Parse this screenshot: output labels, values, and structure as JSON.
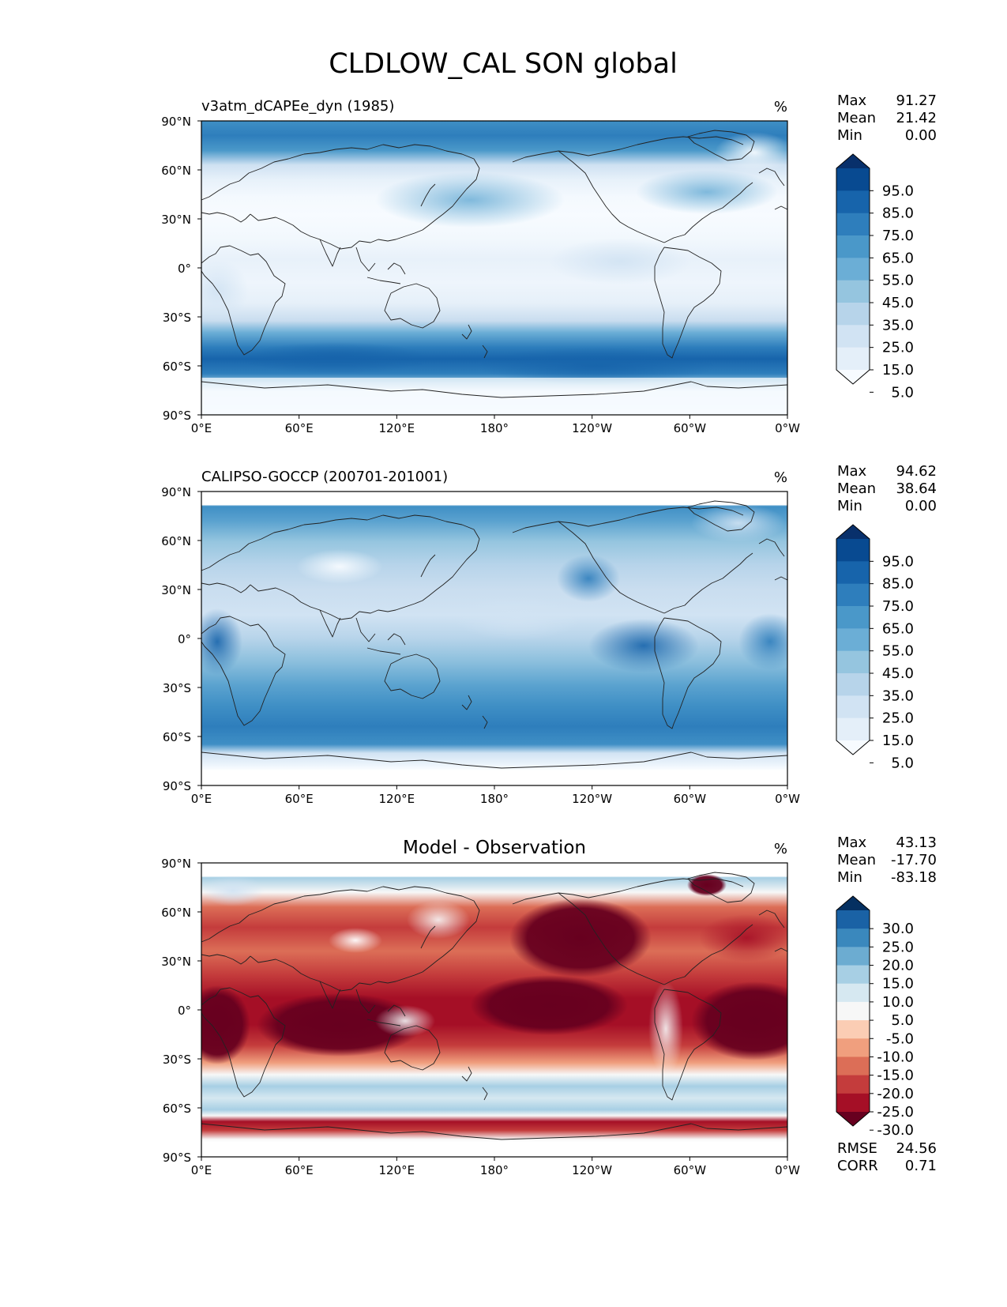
{
  "figure": {
    "title": "CLDLOW_CAL SON global",
    "lat_ticks": [
      "90°N",
      "60°N",
      "30°N",
      "0°",
      "30°S",
      "60°S",
      "90°S"
    ],
    "lon_ticks": [
      "0°E",
      "60°E",
      "120°E",
      "180°",
      "120°W",
      "60°W",
      "0°W"
    ]
  },
  "chart_data": [
    {
      "type": "heatmap",
      "panel": "test",
      "title_left": "v3atm_dCAPEe_dyn (1985)",
      "units": "%",
      "stats": [
        {
          "label": "Max",
          "value": "91.27"
        },
        {
          "label": "Mean",
          "value": "21.42"
        },
        {
          "label": "Min",
          "value": "0.00"
        }
      ],
      "colorbar": {
        "tick_labels": [
          "95.0",
          "85.0",
          "75.0",
          "65.0",
          "55.0",
          "45.0",
          "35.0",
          "25.0",
          "15.0",
          "5.0"
        ],
        "colors": [
          "#f7fbff",
          "#e4eff9",
          "#d1e3f3",
          "#b7d4ea",
          "#95c5df",
          "#6baed6",
          "#4a98c9",
          "#2e7ebc",
          "#1764ab",
          "#084a91",
          "#08306b"
        ]
      },
      "xlim": [
        0,
        360
      ],
      "ylim": [
        -90,
        90
      ]
    },
    {
      "type": "heatmap",
      "panel": "reference",
      "title_left": "CALIPSO-GOCCP (200701-201001)",
      "units": "%",
      "stats": [
        {
          "label": "Max",
          "value": "94.62"
        },
        {
          "label": "Mean",
          "value": "38.64"
        },
        {
          "label": "Min",
          "value": "0.00"
        }
      ],
      "colorbar": {
        "tick_labels": [
          "95.0",
          "85.0",
          "75.0",
          "65.0",
          "55.0",
          "45.0",
          "35.0",
          "25.0",
          "15.0",
          "5.0"
        ],
        "colors": [
          "#f7fbff",
          "#e4eff9",
          "#d1e3f3",
          "#b7d4ea",
          "#95c5df",
          "#6baed6",
          "#4a98c9",
          "#2e7ebc",
          "#1764ab",
          "#084a91",
          "#08306b"
        ]
      },
      "xlim": [
        0,
        360
      ],
      "ylim": [
        -90,
        90
      ]
    },
    {
      "type": "heatmap",
      "panel": "difference",
      "title_center": "Model - Observation",
      "units": "%",
      "stats": [
        {
          "label": "Max",
          "value": "43.13"
        },
        {
          "label": "Mean",
          "value": "-17.70"
        },
        {
          "label": "Min",
          "value": "-83.18"
        }
      ],
      "metrics": [
        {
          "label": "RMSE",
          "value": "24.56"
        },
        {
          "label": "CORR",
          "value": "0.71"
        }
      ],
      "colorbar": {
        "tick_labels": [
          "30.0",
          "25.0",
          "20.0",
          "15.0",
          "10.0",
          "5.0",
          "-5.0",
          "-10.0",
          "-15.0",
          "-20.0",
          "-25.0",
          "-30.0"
        ],
        "colors": [
          "#67001f",
          "#a50f26",
          "#c43c3c",
          "#dc6e57",
          "#f09f7e",
          "#fbcdb4",
          "#f7f7f7",
          "#d6e8f1",
          "#a7cfe4",
          "#6cacd1",
          "#3a88bd",
          "#1a62a5",
          "#053061"
        ]
      },
      "xlim": [
        0,
        360
      ],
      "ylim": [
        -90,
        90
      ]
    }
  ]
}
